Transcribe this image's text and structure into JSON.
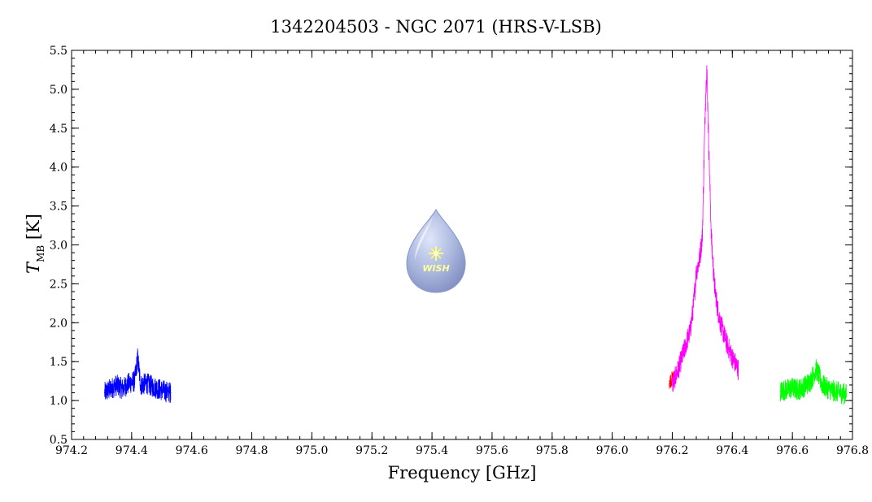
{
  "chart_data": {
    "type": "line",
    "title": "1342204503 - NGC 2071 (HRS-V-LSB)",
    "xlabel": "Frequency [GHz]",
    "ylabel": "T_MB [K]",
    "ylabel_main": "T",
    "ylabel_sub": "MB",
    "ylabel_unit": " [K]",
    "xlim": [
      974.2,
      976.8
    ],
    "ylim": [
      0.5,
      5.5
    ],
    "xticks": [
      974.2,
      974.4,
      974.6,
      974.8,
      975.0,
      975.2,
      975.4,
      975.6,
      975.8,
      976.0,
      976.2,
      976.4,
      976.6,
      976.8
    ],
    "xtick_labels": [
      "974.2",
      "974.4",
      "974.6",
      "974.8",
      "975.0",
      "975.2",
      "975.4",
      "975.6",
      "975.8",
      "976.0",
      "976.2",
      "976.4",
      "976.6",
      "976.8"
    ],
    "yticks": [
      0.5,
      1.0,
      1.5,
      2.0,
      2.5,
      3.0,
      3.5,
      4.0,
      4.5,
      5.0,
      5.5
    ],
    "ytick_labels": [
      "0.5",
      "1.0",
      "1.5",
      "2.0",
      "2.5",
      "3.0",
      "3.5",
      "4.0",
      "4.5",
      "5.0",
      "5.5"
    ],
    "grid": false,
    "series": [
      {
        "color": "#0000ff",
        "x": [
          974.31,
          974.33,
          974.35,
          974.37,
          974.39,
          974.41,
          974.42,
          974.43,
          974.45,
          974.47,
          974.49,
          974.51,
          974.53
        ],
        "y": [
          1.1,
          1.15,
          1.2,
          1.15,
          1.22,
          1.25,
          1.55,
          1.2,
          1.22,
          1.18,
          1.15,
          1.12,
          1.1
        ]
      },
      {
        "color": "#ff0000",
        "x": [
          976.19,
          976.2,
          976.21
        ],
        "y": [
          1.25,
          1.28,
          1.32
        ]
      },
      {
        "color": "#ff00ff",
        "x": [
          976.2,
          976.22,
          976.24,
          976.26,
          976.27,
          976.28,
          976.29,
          976.3,
          976.31,
          976.315,
          976.32,
          976.33,
          976.34,
          976.35,
          976.36,
          976.38,
          976.4,
          976.42
        ],
        "y": [
          1.2,
          1.4,
          1.65,
          1.9,
          2.2,
          2.65,
          2.8,
          3.1,
          4.8,
          5.3,
          4.5,
          3.1,
          2.5,
          2.2,
          2.0,
          1.75,
          1.55,
          1.4
        ]
      },
      {
        "color": "#00ff00",
        "x": [
          976.56,
          976.58,
          976.6,
          976.62,
          976.64,
          976.66,
          976.68,
          976.69,
          976.7,
          976.72,
          976.74,
          976.76,
          976.78
        ],
        "y": [
          1.12,
          1.14,
          1.16,
          1.14,
          1.18,
          1.25,
          1.4,
          1.3,
          1.2,
          1.15,
          1.12,
          1.1,
          1.08
        ]
      }
    ]
  },
  "logo": {
    "text": "WISH",
    "colors": {
      "drop": "#a9b6dd",
      "drop_edge": "#8896c8",
      "star": "#ffff66",
      "text": "#ffff99"
    }
  }
}
